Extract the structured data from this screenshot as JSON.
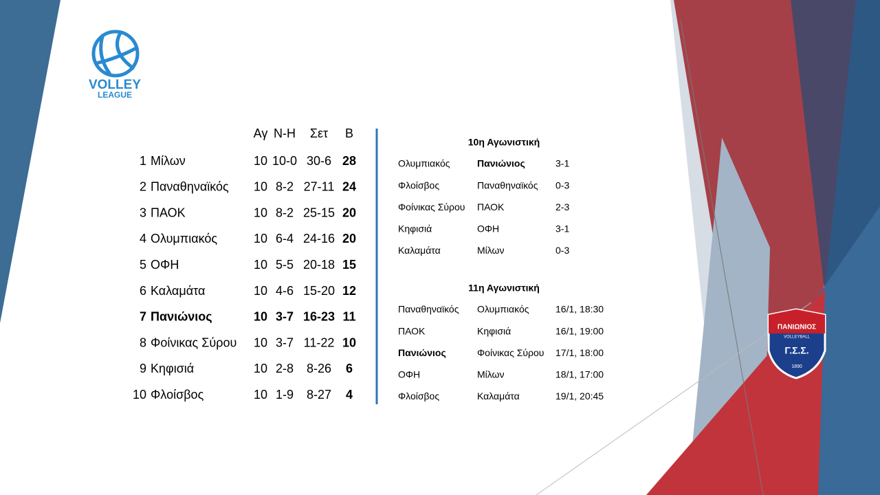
{
  "logo": {
    "line1": "VOLLEY",
    "line2": "LEAGUE"
  },
  "standings": {
    "headers": [
      "Αγ",
      "Ν-Η",
      "Σετ",
      "Β"
    ],
    "bold_rows": [
      6
    ],
    "rows": [
      [
        "1",
        "Μίλων",
        "10",
        "10-0",
        "30-6",
        "28"
      ],
      [
        "2",
        "Παναθηναϊκός",
        "10",
        "8-2",
        "27-11",
        "24"
      ],
      [
        "3",
        "ΠΑΟΚ",
        "10",
        "8-2",
        "25-15",
        "20"
      ],
      [
        "4",
        "Ολυμπιακός",
        "10",
        "6-4",
        "24-16",
        "20"
      ],
      [
        "5",
        "ΟΦΗ",
        "10",
        "5-5",
        "20-18",
        "15"
      ],
      [
        "6",
        "Καλαμάτα",
        "10",
        "4-6",
        "15-20",
        "12"
      ],
      [
        "7",
        "Πανιώνιος",
        "10",
        "3-7",
        "16-23",
        "11"
      ],
      [
        "8",
        "Φοίνικας Σύρου",
        "10",
        "3-7",
        "11-22",
        "10"
      ],
      [
        "9",
        "Κηφισιά",
        "10",
        "2-8",
        "8-26",
        "6"
      ],
      [
        "10",
        "Φλοίσβος",
        "10",
        "1-9",
        "8-27",
        "4"
      ]
    ]
  },
  "rounds": [
    {
      "title": "10η Αγωνιστική",
      "bold": [
        [
          0,
          1
        ]
      ],
      "matches": [
        [
          "Ολυμπιακός",
          "Πανιώνιος",
          "3-1"
        ],
        [
          "Φλοίσβος",
          "Παναθηναϊκός",
          "0-3"
        ],
        [
          "Φοίνικας Σύρου",
          "ΠΑΟΚ",
          "2-3"
        ],
        [
          "Κηφισιά",
          "ΟΦΗ",
          "3-1"
        ],
        [
          "Καλαμάτα",
          "Μίλων",
          "0-3"
        ]
      ]
    },
    {
      "title": "11η Αγωνιστική",
      "bold": [
        [
          2,
          0
        ]
      ],
      "matches": [
        [
          "Παναθηναϊκός",
          "Ολυμπιακός",
          "16/1, 18:30"
        ],
        [
          "ΠΑΟΚ",
          "Κηφισιά",
          "16/1, 19:00"
        ],
        [
          "Πανιώνιος",
          "Φοίνικας Σύρου",
          "17/1, 18:00"
        ],
        [
          "ΟΦΗ",
          "Μίλων",
          "18/1, 17:00"
        ],
        [
          "Φλοίσβος",
          "Καλαμάτα",
          "19/1, 20:45"
        ]
      ]
    }
  ],
  "club_logo": {
    "name": "ΠΑΝΙΩΝΙΟΣ",
    "sport": "VOLLEYBALL",
    "initials": "Γ.Σ.Σ.",
    "year": "1890"
  }
}
